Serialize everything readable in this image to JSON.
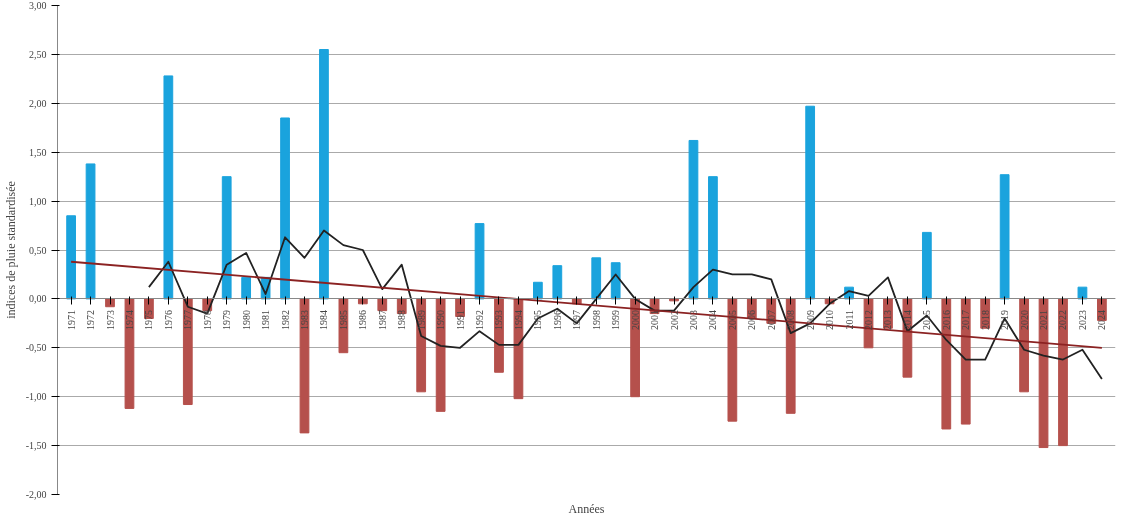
{
  "chart_data": {
    "type": "bar",
    "xlabel": "Années",
    "ylabel": "indices de pluie standardisée",
    "categories": [
      "1971",
      "1972",
      "1973",
      "1974",
      "1975",
      "1976",
      "1977",
      "1978",
      "1979",
      "1980",
      "1981",
      "1982",
      "1983",
      "1984",
      "1985",
      "1986",
      "1987",
      "1988",
      "1989",
      "1990",
      "1991",
      "1992",
      "1993",
      "1994",
      "1995",
      "1996",
      "1997",
      "1998",
      "1999",
      "2000",
      "2001",
      "2002",
      "2003",
      "2004",
      "2005",
      "2006",
      "2007",
      "2008",
      "2009",
      "2010",
      "2011",
      "2012",
      "2013",
      "2014",
      "2015",
      "2016",
      "2017",
      "2018",
      "2019",
      "2020",
      "2021",
      "2022",
      "2023",
      "2024"
    ],
    "series": [
      {
        "values": [
          0.85,
          1.38,
          -0.08,
          -1.12,
          -0.2,
          2.28,
          -1.08,
          -0.12,
          1.25,
          0.22,
          0.22,
          1.85,
          -1.37,
          2.55,
          -0.55,
          -0.05,
          -0.12,
          -0.15,
          -0.95,
          -1.15,
          -0.18,
          0.77,
          -0.75,
          -1.02,
          0.17,
          0.34,
          -0.05,
          0.42,
          0.37,
          -1.0,
          -0.15,
          -0.02,
          1.62,
          1.25,
          -1.25,
          -0.2,
          -0.25,
          -1.17,
          1.97,
          -0.05,
          0.12,
          -0.5,
          -0.3,
          -0.8,
          0.68,
          -1.33,
          -1.28,
          -0.3,
          1.27,
          -0.95,
          -1.52,
          -1.5,
          0.12,
          -0.22
        ],
        "colors": [
          "#1aa3dd",
          "#1aa3dd",
          "#b5504c",
          "#b5504c",
          "#b5504c",
          "#1aa3dd",
          "#b5504c",
          "#b5504c",
          "#1aa3dd",
          "#1aa3dd",
          "#1aa3dd",
          "#1aa3dd",
          "#b5504c",
          "#1aa3dd",
          "#b5504c",
          "#b5504c",
          "#b5504c",
          "#b5504c",
          "#b5504c",
          "#b5504c",
          "#b5504c",
          "#1aa3dd",
          "#b5504c",
          "#b5504c",
          "#1aa3dd",
          "#1aa3dd",
          "#b5504c",
          "#1aa3dd",
          "#1aa3dd",
          "#b5504c",
          "#b5504c",
          "#b5504c",
          "#1aa3dd",
          "#1aa3dd",
          "#b5504c",
          "#b5504c",
          "#b5504c",
          "#b5504c",
          "#1aa3dd",
          "#b5504c",
          "#1aa3dd",
          "#b5504c",
          "#b5504c",
          "#b5504c",
          "#1aa3dd",
          "#b5504c",
          "#b5504c",
          "#b5504c",
          "#1aa3dd",
          "#b5504c",
          "#b5504c",
          "#b5504c",
          "#1aa3dd",
          "#b5504c"
        ]
      },
      {
        "type": "line",
        "color": "#222222",
        "values": [
          null,
          null,
          null,
          null,
          0.12,
          0.38,
          -0.08,
          -0.15,
          0.35,
          0.47,
          0.05,
          0.63,
          0.42,
          0.7,
          0.55,
          0.5,
          0.1,
          0.35,
          -0.38,
          -0.48,
          -0.5,
          -0.33,
          -0.47,
          -0.47,
          -0.2,
          -0.1,
          -0.25,
          0.0,
          0.25,
          0.0,
          -0.12,
          -0.12,
          0.12,
          0.3,
          0.25,
          0.25,
          0.2,
          -0.35,
          -0.25,
          -0.05,
          0.08,
          0.03,
          0.22,
          -0.33,
          -0.17,
          -0.42,
          -0.62,
          -0.62,
          -0.2,
          -0.52,
          -0.58,
          -0.62,
          -0.52,
          -0.82
        ]
      },
      {
        "type": "line",
        "color": "#8b2222",
        "values": [
          0.38,
          null,
          null,
          null,
          null,
          null,
          null,
          null,
          null,
          null,
          null,
          null,
          null,
          null,
          null,
          null,
          null,
          null,
          null,
          null,
          null,
          null,
          null,
          null,
          null,
          null,
          null,
          null,
          null,
          null,
          null,
          null,
          null,
          null,
          null,
          null,
          null,
          null,
          null,
          null,
          null,
          null,
          null,
          null,
          null,
          null,
          null,
          null,
          null,
          null,
          null,
          null,
          null,
          -0.5
        ]
      }
    ],
    "ylim": [
      -2.0,
      3.0
    ],
    "yticks": [
      {
        "value": -2.0,
        "label": "-2,00"
      },
      {
        "value": -1.5,
        "label": "-1,50"
      },
      {
        "value": -1.0,
        "label": "-1,00"
      },
      {
        "value": -0.5,
        "label": "-0,50"
      },
      {
        "value": 0.0,
        "label": "0,00"
      },
      {
        "value": 0.5,
        "label": "0,50"
      },
      {
        "value": 1.0,
        "label": "1,00"
      },
      {
        "value": 1.5,
        "label": "1,50"
      },
      {
        "value": 2.0,
        "label": "2,00"
      },
      {
        "value": 2.5,
        "label": "2,50"
      },
      {
        "value": 3.0,
        "label": "3,00"
      }
    ],
    "grid": "y"
  }
}
